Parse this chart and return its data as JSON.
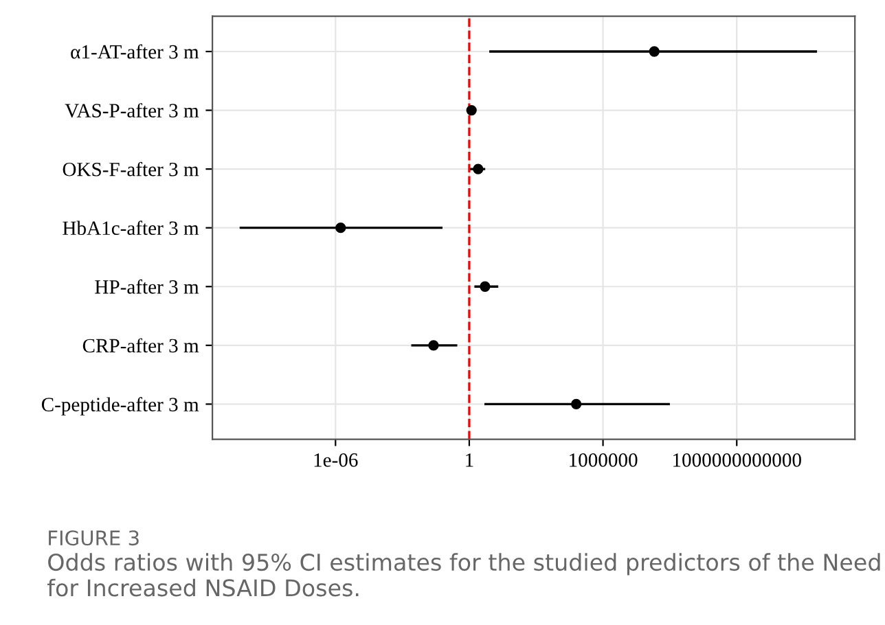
{
  "chart_data": {
    "type": "scatter",
    "orientation": "horizontal",
    "log": "x",
    "categories": [
      "α1-AT-after 3 m",
      "VAS-P-after 3 m",
      "OKS-F-after 3 m",
      "HbA1c-after 3 m",
      "HP-after 3 m",
      "CRP-after 3 m",
      "C-peptide-after 3 m"
    ],
    "series": [
      {
        "color": "#000000",
        "values": [
          200000000.0,
          1.26,
          2.5,
          1.7e-06,
          5.1,
          0.025,
          63000
        ],
        "errors": [
          [
            7.9,
            4000000000000000.0
          ],
          [
            1.1,
            1.4
          ],
          [
            1.1,
            5.2
          ],
          [
            5e-11,
            0.063
          ],
          [
            1.7,
            20
          ],
          [
            0.0025,
            0.29
          ],
          [
            4.8,
            1000000000.0
          ]
        ]
      }
    ],
    "xlim": [
      3e-12,
      2e+17
    ],
    "xticks": [
      {
        "value": 1e-06,
        "label": "1e-06"
      },
      {
        "value": 1,
        "label": "1"
      },
      {
        "value": 1000000.0,
        "label": "1000000"
      },
      {
        "value": 1000000000000.0,
        "label": "1000000000000"
      }
    ],
    "marker": "circle",
    "grid": true,
    "ref_lines": [
      {
        "axis": "x",
        "value": 1,
        "color": "#ff0000",
        "line_style": "dashed"
      }
    ],
    "annotations": [
      "FIGURE 3",
      "Odds ratios with 95% CI estimates for the studied predictors of the Need for Increased NSAID Doses."
    ]
  }
}
